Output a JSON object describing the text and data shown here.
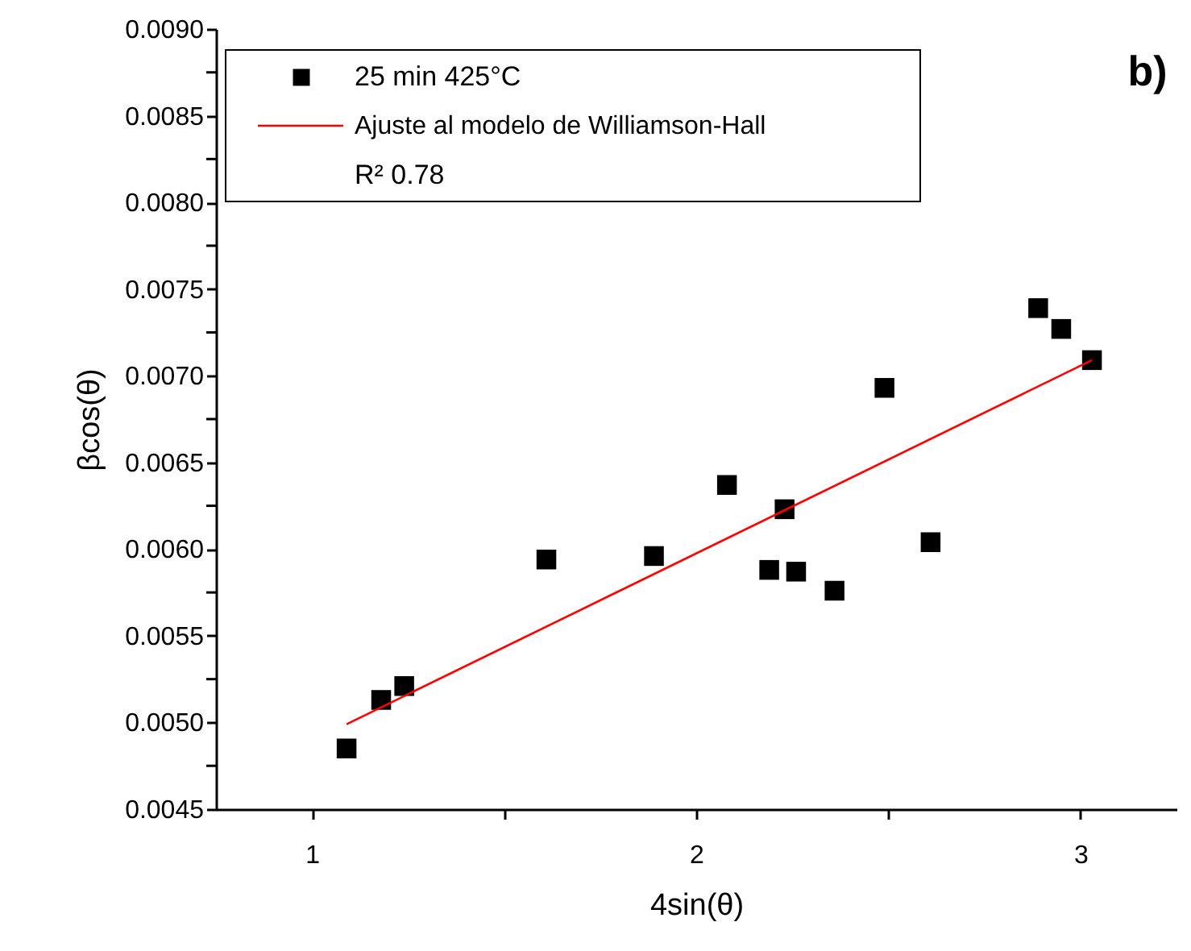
{
  "chart_data": {
    "type": "scatter",
    "xlabel": "4sin(θ)",
    "ylabel": "βcos(θ)",
    "xlim": [
      0.75,
      3.25
    ],
    "xticks": [
      1,
      {
        "value": 1.5,
        "label": null
      },
      2,
      {
        "value": 2.5,
        "label": null
      },
      3
    ],
    "ylim": [
      0.0045,
      0.009
    ],
    "yticks": [
      {
        "value": 0.0045,
        "label": "0.0045"
      },
      {
        "value": 0.00475,
        "label": null
      },
      {
        "value": 0.005,
        "label": "0.0050"
      },
      {
        "value": 0.00525,
        "label": null
      },
      {
        "value": 0.0055,
        "label": "0.0055"
      },
      {
        "value": 0.00575,
        "label": null
      },
      {
        "value": 0.006,
        "label": "0.0060"
      },
      {
        "value": 0.00625,
        "label": null
      },
      {
        "value": 0.0065,
        "label": "0.0065"
      },
      {
        "value": 0.00675,
        "label": null
      },
      {
        "value": 0.007,
        "label": "0.0070"
      },
      {
        "value": 0.00725,
        "label": null
      },
      {
        "value": 0.0075,
        "label": "0.0075"
      },
      {
        "value": 0.00775,
        "label": null
      },
      {
        "value": 0.008,
        "label": "0.0080"
      },
      {
        "value": 0.00825,
        "label": null
      },
      {
        "value": 0.0085,
        "label": "0.0085"
      },
      {
        "value": 0.00875,
        "label": null
      },
      {
        "value": 0.009,
        "label": "0.0090"
      }
    ],
    "grid": false,
    "legend": "top left",
    "marker": "square",
    "series": [
      {
        "name": "25 min 425°C",
        "color": "#000000",
        "x": [
          1.09,
          1.18,
          1.24,
          1.61,
          1.89,
          2.08,
          2.19,
          2.23,
          2.26,
          2.36,
          2.49,
          2.61,
          2.89,
          2.95,
          3.03
        ],
        "values": [
          0.00485,
          0.00513,
          0.00521,
          0.00594,
          0.00596,
          0.00637,
          0.00588,
          0.00623,
          0.00587,
          0.00576,
          0.00693,
          0.00604,
          0.00739,
          0.00727,
          0.00709
        ]
      },
      {
        "name": "Ajuste al modelo de Williamson-Hall",
        "type": "line",
        "color": "#ff0000",
        "line_style": "solid",
        "marker": "none",
        "x": [
          1.09,
          3.03
        ],
        "values": [
          0.00499,
          0.00709
        ]
      }
    ],
    "annotations": [
      "R² 0.78",
      "b)"
    ]
  }
}
